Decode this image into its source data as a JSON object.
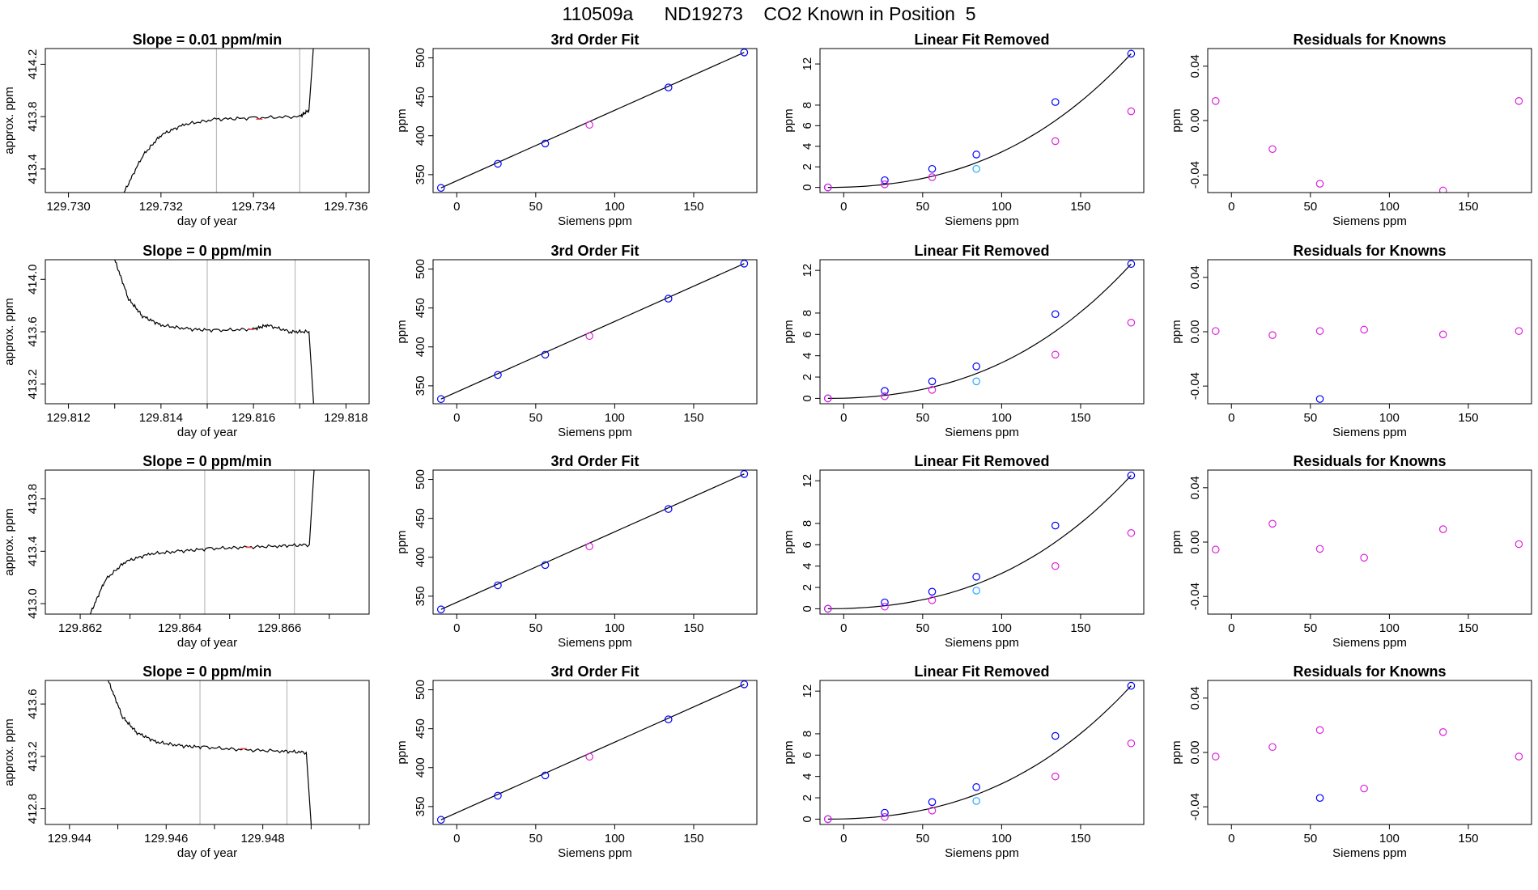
{
  "figure": {
    "title": "110509a      ND19273    CO2 Known in Position  5"
  },
  "colors": {
    "line": "#000000",
    "blue_point": "#0000ff",
    "magenta_point": "#dd22dd",
    "cyan_point": "#22aaff",
    "window_line": "#bbbbbb",
    "marker": "#ff4444"
  },
  "chart_data": [
    {
      "type": "line",
      "row": 1,
      "col": 1,
      "title": "Slope =  0.01  ppm/min",
      "xlabel": "day of year",
      "ylabel": "approx. ppm",
      "xlim": [
        129.7295,
        129.7365
      ],
      "ylim": [
        413.22,
        414.32
      ],
      "xticks": [
        129.73,
        129.732,
        129.734,
        129.736
      ],
      "xtick_labels": [
        "129.730",
        "129.732",
        "129.734",
        "129.736"
      ],
      "yticks": [
        413.4,
        413.8,
        414.2
      ],
      "ytick_labels": [
        "413.4",
        "413.8",
        "414.2"
      ],
      "window": [
        129.7332,
        129.735
      ],
      "x": [
        129.7312,
        129.7316,
        129.732,
        129.7325,
        129.7332,
        129.734,
        129.735,
        129.7352,
        129.7353
      ],
      "y": [
        413.22,
        413.5,
        413.66,
        413.74,
        413.78,
        413.79,
        413.8,
        413.85,
        414.35
      ]
    },
    {
      "type": "scatter",
      "row": 1,
      "col": 2,
      "title": "3rd Order Fit",
      "xlabel": "Siemens ppm",
      "ylabel": "ppm",
      "xlim": [
        -15,
        190
      ],
      "ylim": [
        327,
        512
      ],
      "xticks": [
        0,
        50,
        100,
        150
      ],
      "xtick_labels": [
        "0",
        "50",
        "100",
        "150"
      ],
      "yticks": [
        350,
        400,
        450,
        500
      ],
      "ytick_labels": [
        "350",
        "400",
        "450",
        "500"
      ],
      "series": [
        {
          "color": "blue",
          "x": [
            -10,
            26,
            56,
            134,
            182
          ],
          "y": [
            333,
            364,
            390,
            462,
            507
          ]
        },
        {
          "color": "magenta",
          "x": [
            84
          ],
          "y": [
            414
          ]
        }
      ],
      "fit_line": {
        "x": [
          -10,
          182
        ],
        "y": [
          333,
          507
        ]
      }
    },
    {
      "type": "scatter",
      "row": 1,
      "col": 3,
      "title": "Linear Fit Removed",
      "xlabel": "Siemens ppm",
      "ylabel": "ppm",
      "xlim": [
        -15,
        190
      ],
      "ylim": [
        -0.5,
        13.5
      ],
      "xticks": [
        0,
        50,
        100,
        150
      ],
      "xtick_labels": [
        "0",
        "50",
        "100",
        "150"
      ],
      "yticks": [
        0,
        2,
        4,
        6,
        8,
        12
      ],
      "ytick_labels": [
        "0",
        "2",
        "4",
        "6",
        "8",
        "12"
      ],
      "series": [
        {
          "color": "blue",
          "x": [
            -10,
            26,
            56,
            84,
            134,
            182
          ],
          "y": [
            0,
            0.7,
            1.8,
            3.2,
            8.3,
            13.0
          ]
        },
        {
          "color": "magenta",
          "x": [
            -10,
            26,
            56,
            134,
            182
          ],
          "y": [
            0,
            0.3,
            1.0,
            4.5,
            7.4
          ]
        },
        {
          "color": "cyan",
          "x": [
            84
          ],
          "y": [
            1.8
          ]
        }
      ],
      "fit_curve": {
        "x": [
          -10,
          182
        ],
        "y": [
          0,
          13.0
        ]
      }
    },
    {
      "type": "scatter",
      "row": 1,
      "col": 4,
      "title": "Residuals for Knowns",
      "xlabel": "Siemens ppm",
      "ylabel": "ppm",
      "xlim": [
        -15,
        190
      ],
      "ylim": [
        -0.053,
        0.053
      ],
      "xticks": [
        0,
        50,
        100,
        150
      ],
      "xtick_labels": [
        "0",
        "50",
        "100",
        "150"
      ],
      "yticks": [
        -0.04,
        0.0,
        0.04
      ],
      "ytick_labels": [
        "-0.04",
        "0.00",
        "0.04"
      ],
      "series": [
        {
          "color": "magenta",
          "x": [
            -10,
            26,
            56,
            134,
            182
          ],
          "y": [
            0.0144,
            -0.021,
            -0.0465,
            -0.0515,
            0.0144
          ]
        }
      ]
    },
    {
      "type": "line",
      "row": 2,
      "col": 1,
      "title": "Slope =  0  ppm/min",
      "xlabel": "day of year",
      "ylabel": "approx. ppm",
      "xlim": [
        129.8115,
        129.8185
      ],
      "ylim": [
        413.05,
        414.15
      ],
      "xticks": [
        129.812,
        129.813,
        129.814,
        129.815,
        129.816,
        129.817,
        129.818
      ],
      "xtick_labels": [
        "129.812",
        "",
        "129.814",
        "",
        "129.816",
        "",
        "129.818"
      ],
      "yticks": [
        413.2,
        413.6,
        414.0
      ],
      "ytick_labels": [
        "413.2",
        "413.6",
        "414.0"
      ],
      "window": [
        129.815,
        129.8169
      ],
      "x": [
        129.813,
        129.8133,
        129.8136,
        129.814,
        129.8146,
        129.8152,
        129.816,
        129.8163,
        129.8168,
        129.8172,
        129.8173
      ],
      "y": [
        414.15,
        413.85,
        413.72,
        413.65,
        413.62,
        413.61,
        413.62,
        413.65,
        413.6,
        413.6,
        413.05
      ]
    },
    {
      "type": "scatter",
      "row": 2,
      "col": 2,
      "title": "3rd Order Fit",
      "xlabel": "Siemens ppm",
      "ylabel": "ppm",
      "xlim": [
        -15,
        190
      ],
      "ylim": [
        327,
        512
      ],
      "xticks": [
        0,
        50,
        100,
        150
      ],
      "xtick_labels": [
        "0",
        "50",
        "100",
        "150"
      ],
      "yticks": [
        350,
        400,
        450,
        500
      ],
      "ytick_labels": [
        "350",
        "400",
        "450",
        "500"
      ],
      "series": [
        {
          "color": "blue",
          "x": [
            -10,
            26,
            56,
            134,
            182
          ],
          "y": [
            333,
            364,
            390,
            462,
            507
          ]
        },
        {
          "color": "magenta",
          "x": [
            84
          ],
          "y": [
            414
          ]
        }
      ],
      "fit_line": {
        "x": [
          -10,
          182
        ],
        "y": [
          333,
          507
        ]
      }
    },
    {
      "type": "scatter",
      "row": 2,
      "col": 3,
      "title": "Linear Fit Removed",
      "xlabel": "Siemens ppm",
      "ylabel": "ppm",
      "xlim": [
        -15,
        190
      ],
      "ylim": [
        -0.5,
        13.0
      ],
      "xticks": [
        0,
        50,
        100,
        150
      ],
      "xtick_labels": [
        "0",
        "50",
        "100",
        "150"
      ],
      "yticks": [
        0,
        2,
        4,
        6,
        8,
        12
      ],
      "ytick_labels": [
        "0",
        "2",
        "4",
        "6",
        "8",
        "12"
      ],
      "series": [
        {
          "color": "blue",
          "x": [
            -10,
            26,
            56,
            84,
            134,
            182
          ],
          "y": [
            0,
            0.7,
            1.6,
            3.0,
            7.9,
            12.6
          ]
        },
        {
          "color": "magenta",
          "x": [
            -10,
            26,
            56,
            134,
            182
          ],
          "y": [
            0,
            0.2,
            0.8,
            4.1,
            7.1
          ]
        },
        {
          "color": "cyan",
          "x": [
            84
          ],
          "y": [
            1.6
          ]
        }
      ],
      "fit_curve": {
        "x": [
          -10,
          182
        ],
        "y": [
          0,
          12.6
        ]
      }
    },
    {
      "type": "scatter",
      "row": 2,
      "col": 4,
      "title": "Residuals for Knowns",
      "xlabel": "Siemens ppm",
      "ylabel": "ppm",
      "xlim": [
        -15,
        190
      ],
      "ylim": [
        -0.053,
        0.053
      ],
      "xticks": [
        0,
        50,
        100,
        150
      ],
      "xtick_labels": [
        "0",
        "50",
        "100",
        "150"
      ],
      "yticks": [
        -0.04,
        0.0,
        0.04
      ],
      "ytick_labels": [
        "-0.04",
        "0.00",
        "0.04"
      ],
      "series": [
        {
          "color": "magenta",
          "x": [
            -10,
            26,
            56,
            84,
            134,
            182
          ],
          "y": [
            0.0005,
            -0.0025,
            0.0005,
            0.0015,
            -0.002,
            0.0005
          ]
        },
        {
          "color": "blue",
          "x": [
            56
          ],
          "y": [
            -0.0495
          ]
        }
      ]
    },
    {
      "type": "line",
      "row": 3,
      "col": 1,
      "title": "Slope =  0  ppm/min",
      "xlabel": "day of year",
      "ylabel": "approx. ppm",
      "xlim": [
        129.8613,
        129.8678
      ],
      "ylim": [
        412.92,
        414.02
      ],
      "xticks": [
        129.862,
        129.863,
        129.864,
        129.865,
        129.866,
        129.867
      ],
      "xtick_labels": [
        "129.862",
        "",
        "129.864",
        "",
        "129.866",
        ""
      ],
      "yticks": [
        413.0,
        413.4,
        413.8
      ],
      "ytick_labels": [
        "413.0",
        "413.4",
        "413.8"
      ],
      "window": [
        129.8645,
        129.8663
      ],
      "x": [
        129.8622,
        129.8625,
        129.8629,
        129.8634,
        129.864,
        129.8646,
        129.8653,
        129.866,
        129.8666,
        129.8667
      ],
      "y": [
        412.92,
        413.18,
        413.32,
        413.38,
        413.4,
        413.42,
        413.43,
        413.44,
        413.45,
        414.05
      ]
    },
    {
      "type": "scatter",
      "row": 3,
      "col": 2,
      "title": "3rd Order Fit",
      "xlabel": "Siemens ppm",
      "ylabel": "ppm",
      "xlim": [
        -15,
        190
      ],
      "ylim": [
        327,
        512
      ],
      "xticks": [
        0,
        50,
        100,
        150
      ],
      "xtick_labels": [
        "0",
        "50",
        "100",
        "150"
      ],
      "yticks": [
        350,
        400,
        450,
        500
      ],
      "ytick_labels": [
        "350",
        "400",
        "450",
        "500"
      ],
      "series": [
        {
          "color": "blue",
          "x": [
            -10,
            26,
            56,
            134,
            182
          ],
          "y": [
            333,
            364,
            390,
            462,
            507
          ]
        },
        {
          "color": "magenta",
          "x": [
            84
          ],
          "y": [
            414
          ]
        }
      ],
      "fit_line": {
        "x": [
          -10,
          182
        ],
        "y": [
          333,
          507
        ]
      }
    },
    {
      "type": "scatter",
      "row": 3,
      "col": 3,
      "title": "Linear Fit Removed",
      "xlabel": "Siemens ppm",
      "ylabel": "ppm",
      "xlim": [
        -15,
        190
      ],
      "ylim": [
        -0.5,
        13.0
      ],
      "xticks": [
        0,
        50,
        100,
        150
      ],
      "xtick_labels": [
        "0",
        "50",
        "100",
        "150"
      ],
      "yticks": [
        0,
        2,
        4,
        6,
        8,
        12
      ],
      "ytick_labels": [
        "0",
        "2",
        "4",
        "6",
        "8",
        "12"
      ],
      "series": [
        {
          "color": "blue",
          "x": [
            -10,
            26,
            56,
            84,
            134,
            182
          ],
          "y": [
            0,
            0.6,
            1.6,
            3.0,
            7.8,
            12.5
          ]
        },
        {
          "color": "magenta",
          "x": [
            -10,
            26,
            56,
            134,
            182
          ],
          "y": [
            0,
            0.2,
            0.8,
            4.0,
            7.1
          ]
        },
        {
          "color": "cyan",
          "x": [
            84
          ],
          "y": [
            1.7
          ]
        }
      ],
      "fit_curve": {
        "x": [
          -10,
          182
        ],
        "y": [
          0,
          12.5
        ]
      }
    },
    {
      "type": "scatter",
      "row": 3,
      "col": 4,
      "title": "Residuals for Knowns",
      "xlabel": "Siemens ppm",
      "ylabel": "ppm",
      "xlim": [
        -15,
        190
      ],
      "ylim": [
        -0.053,
        0.053
      ],
      "xticks": [
        0,
        50,
        100,
        150
      ],
      "xtick_labels": [
        "0",
        "50",
        "100",
        "150"
      ],
      "yticks": [
        -0.04,
        0.0,
        0.04
      ],
      "ytick_labels": [
        "-0.04",
        "0.00",
        "0.04"
      ],
      "series": [
        {
          "color": "magenta",
          "x": [
            -10,
            26,
            56,
            84,
            134,
            182
          ],
          "y": [
            -0.0055,
            0.0135,
            -0.005,
            -0.0115,
            0.0095,
            -0.0015
          ]
        }
      ]
    },
    {
      "type": "line",
      "row": 4,
      "col": 1,
      "title": "Slope =  0  ppm/min",
      "xlabel": "day of year",
      "ylabel": "approx. ppm",
      "xlim": [
        129.9435,
        129.9502
      ],
      "ylim": [
        412.68,
        413.78
      ],
      "xticks": [
        129.944,
        129.945,
        129.946,
        129.947,
        129.948,
        129.949,
        129.95
      ],
      "xtick_labels": [
        "129.944",
        "",
        "129.946",
        "",
        "129.948",
        "",
        ""
      ],
      "yticks": [
        412.8,
        413.2,
        413.6
      ],
      "ytick_labels": [
        "412.8",
        "413.2",
        "413.6"
      ],
      "window": [
        129.9467,
        129.9485
      ],
      "x": [
        129.9448,
        129.9451,
        129.9454,
        129.9458,
        129.9463,
        129.9468,
        129.9476,
        129.9484,
        129.9489,
        129.949
      ],
      "y": [
        413.78,
        413.5,
        413.38,
        413.31,
        413.28,
        413.27,
        413.25,
        413.24,
        413.23,
        412.68
      ]
    },
    {
      "type": "scatter",
      "row": 4,
      "col": 2,
      "title": "3rd Order Fit",
      "xlabel": "Siemens ppm",
      "ylabel": "ppm",
      "xlim": [
        -15,
        190
      ],
      "ylim": [
        327,
        512
      ],
      "xticks": [
        0,
        50,
        100,
        150
      ],
      "xtick_labels": [
        "0",
        "50",
        "100",
        "150"
      ],
      "yticks": [
        350,
        400,
        450,
        500
      ],
      "ytick_labels": [
        "350",
        "400",
        "450",
        "500"
      ],
      "series": [
        {
          "color": "blue",
          "x": [
            -10,
            26,
            56,
            134,
            182
          ],
          "y": [
            333,
            364,
            390,
            462,
            507
          ]
        },
        {
          "color": "magenta",
          "x": [
            84
          ],
          "y": [
            414
          ]
        }
      ],
      "fit_line": {
        "x": [
          -10,
          182
        ],
        "y": [
          333,
          507
        ]
      }
    },
    {
      "type": "scatter",
      "row": 4,
      "col": 3,
      "title": "Linear Fit Removed",
      "xlabel": "Siemens ppm",
      "ylabel": "ppm",
      "xlim": [
        -15,
        190
      ],
      "ylim": [
        -0.5,
        13.0
      ],
      "xticks": [
        0,
        50,
        100,
        150
      ],
      "xtick_labels": [
        "0",
        "50",
        "100",
        "150"
      ],
      "yticks": [
        0,
        2,
        4,
        6,
        8,
        12
      ],
      "ytick_labels": [
        "0",
        "2",
        "4",
        "6",
        "8",
        "12"
      ],
      "series": [
        {
          "color": "blue",
          "x": [
            -10,
            26,
            56,
            84,
            134,
            182
          ],
          "y": [
            0,
            0.6,
            1.6,
            3.0,
            7.8,
            12.5
          ]
        },
        {
          "color": "magenta",
          "x": [
            -10,
            26,
            56,
            134,
            182
          ],
          "y": [
            0,
            0.2,
            0.8,
            4.0,
            7.1
          ]
        },
        {
          "color": "cyan",
          "x": [
            84
          ],
          "y": [
            1.7
          ]
        }
      ],
      "fit_curve": {
        "x": [
          -10,
          182
        ],
        "y": [
          0,
          12.5
        ]
      }
    },
    {
      "type": "scatter",
      "row": 4,
      "col": 4,
      "title": "Residuals for Knowns",
      "xlabel": "Siemens ppm",
      "ylabel": "ppm",
      "xlim": [
        -15,
        190
      ],
      "ylim": [
        -0.053,
        0.053
      ],
      "xticks": [
        0,
        50,
        100,
        150
      ],
      "xtick_labels": [
        "0",
        "50",
        "100",
        "150"
      ],
      "yticks": [
        -0.04,
        0.0,
        0.04
      ],
      "ytick_labels": [
        "-0.04",
        "0.00",
        "0.04"
      ],
      "series": [
        {
          "color": "magenta",
          "x": [
            -10,
            26,
            56,
            84,
            134,
            182
          ],
          "y": [
            -0.003,
            0.004,
            0.0165,
            -0.0265,
            0.015,
            -0.003
          ]
        },
        {
          "color": "blue",
          "x": [
            56
          ],
          "y": [
            -0.0335
          ]
        }
      ]
    }
  ]
}
